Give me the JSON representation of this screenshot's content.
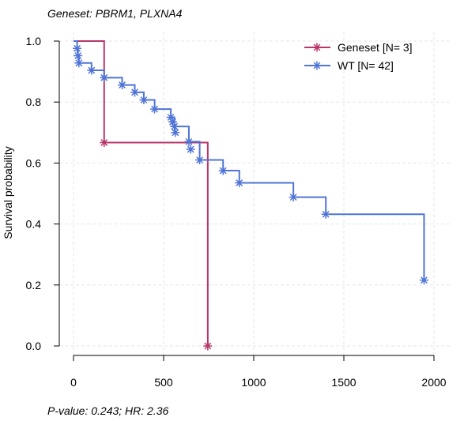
{
  "chart_data": {
    "type": "line",
    "subtype": "kaplan-meier",
    "title": "Geneset: PBRM1, PLXNA4",
    "footer": "P-value: 0.243; HR: 2.36",
    "xlabel": "",
    "ylabel": "Survival probability",
    "xlim": [
      0,
      2000
    ],
    "ylim": [
      0,
      1
    ],
    "xticks": [
      "0",
      "500",
      "1000",
      "1500",
      "2000"
    ],
    "yticks": [
      "0.0",
      "0.2",
      "0.4",
      "0.6",
      "0.8",
      "1.0"
    ],
    "grid": true,
    "legend_position": "top-right",
    "series": [
      {
        "name": "Geneset [N= 3]",
        "color": "#b8366a",
        "steps": [
          [
            0,
            1.0
          ],
          [
            170,
            0.667
          ],
          [
            745,
            0.0
          ]
        ],
        "censored": [
          [
            170,
            0.667
          ],
          [
            745,
            0.0
          ]
        ]
      },
      {
        "name": "WT [N= 42]",
        "color": "#4f74d6",
        "steps": [
          [
            0,
            1.0
          ],
          [
            20,
            0.976
          ],
          [
            25,
            0.952
          ],
          [
            30,
            0.928
          ],
          [
            100,
            0.904
          ],
          [
            170,
            0.88
          ],
          [
            270,
            0.856
          ],
          [
            340,
            0.832
          ],
          [
            390,
            0.807
          ],
          [
            450,
            0.777
          ],
          [
            540,
            0.75
          ],
          [
            560,
            0.72
          ],
          [
            640,
            0.67
          ],
          [
            700,
            0.61
          ],
          [
            830,
            0.575
          ],
          [
            920,
            0.535
          ],
          [
            1220,
            0.488
          ],
          [
            1400,
            0.432
          ],
          [
            1945,
            0.216
          ]
        ],
        "censored": [
          [
            20,
            0.976
          ],
          [
            25,
            0.952
          ],
          [
            30,
            0.928
          ],
          [
            100,
            0.904
          ],
          [
            170,
            0.88
          ],
          [
            270,
            0.856
          ],
          [
            340,
            0.832
          ],
          [
            390,
            0.807
          ],
          [
            450,
            0.777
          ],
          [
            540,
            0.75
          ],
          [
            550,
            0.735
          ],
          [
            560,
            0.72
          ],
          [
            565,
            0.7
          ],
          [
            640,
            0.67
          ],
          [
            650,
            0.645
          ],
          [
            700,
            0.61
          ],
          [
            830,
            0.575
          ],
          [
            920,
            0.535
          ],
          [
            1220,
            0.488
          ],
          [
            1400,
            0.432
          ],
          [
            1945,
            0.216
          ]
        ]
      }
    ]
  }
}
